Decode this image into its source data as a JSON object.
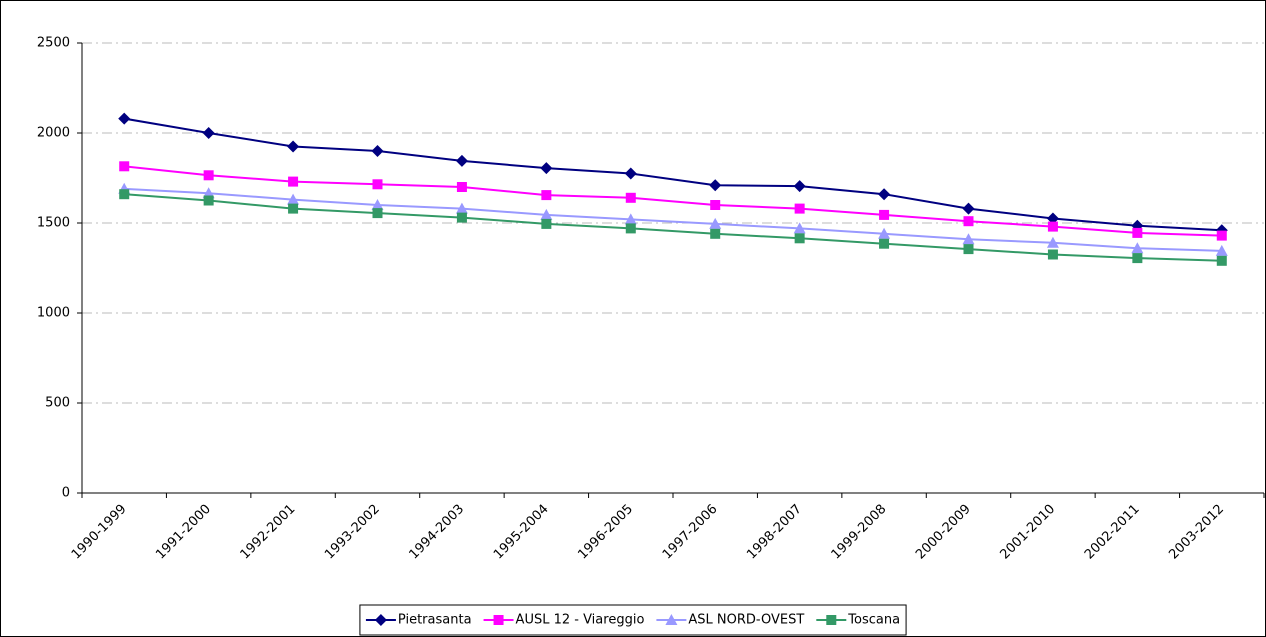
{
  "chart_data": {
    "type": "line",
    "categories": [
      "1990-1999",
      "1991-2000",
      "1992-2001",
      "1993-2002",
      "1994-2003",
      "1995-2004",
      "1996-2005",
      "1997-2006",
      "1998-2007",
      "1999-2008",
      "2000-2009",
      "2001-2010",
      "2002-2011",
      "2003-2012"
    ],
    "series": [
      {
        "name": "Pietrasanta",
        "color": "#000080",
        "marker": "diamond",
        "values": [
          2080,
          2000,
          1925,
          1900,
          1845,
          1805,
          1775,
          1710,
          1705,
          1660,
          1580,
          1525,
          1485,
          1460
        ]
      },
      {
        "name": "AUSL 12 - Viareggio",
        "color": "#ff00ff",
        "marker": "square",
        "values": [
          1815,
          1765,
          1730,
          1715,
          1700,
          1655,
          1640,
          1600,
          1580,
          1545,
          1510,
          1480,
          1445,
          1430
        ]
      },
      {
        "name": "ASL NORD-OVEST",
        "color": "#9999ff",
        "marker": "triangle",
        "values": [
          1690,
          1665,
          1630,
          1600,
          1580,
          1545,
          1520,
          1495,
          1470,
          1440,
          1410,
          1390,
          1360,
          1345
        ]
      },
      {
        "name": "Toscana",
        "color": "#339966",
        "marker": "square",
        "values": [
          1660,
          1625,
          1580,
          1555,
          1530,
          1495,
          1470,
          1440,
          1415,
          1385,
          1355,
          1325,
          1305,
          1290
        ]
      }
    ],
    "ylim": [
      0,
      2500
    ],
    "yticks": [
      0,
      500,
      1000,
      1500,
      2000,
      2500
    ],
    "grid": true,
    "legend": "bottom"
  }
}
